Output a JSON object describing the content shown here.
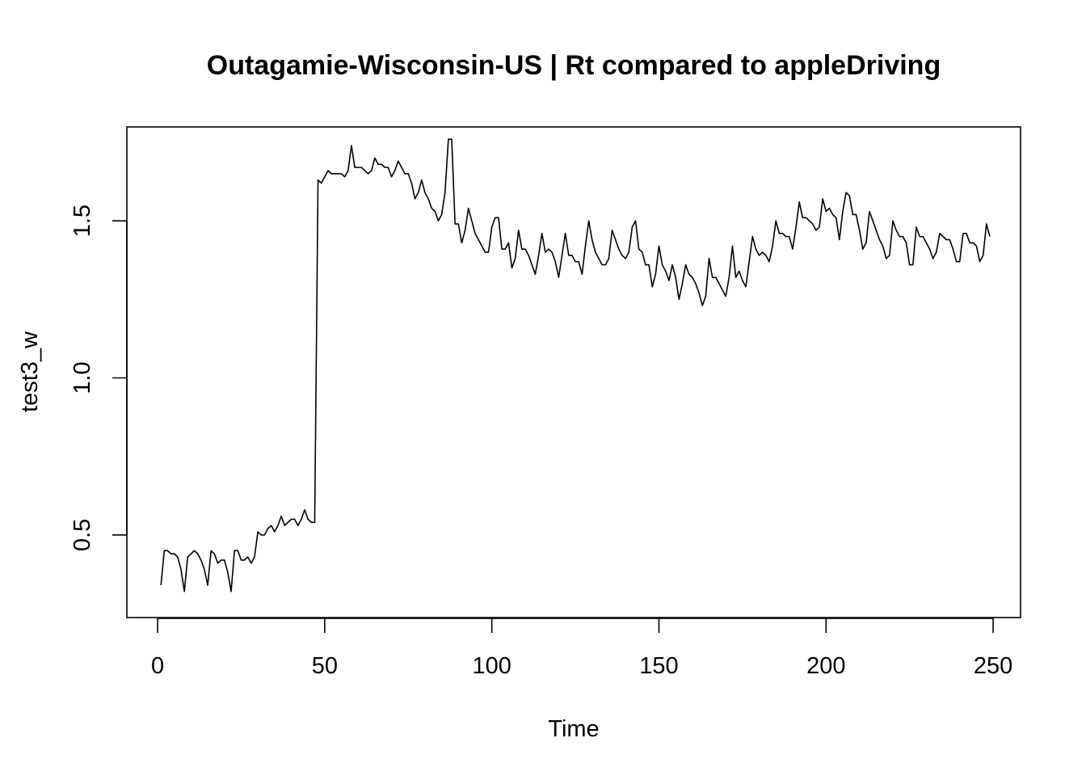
{
  "chart_data": {
    "type": "line",
    "title": "Outagamie-Wisconsin-US | Rt compared to appleDriving",
    "xlabel": "Time",
    "ylabel": "test3_w",
    "xlim": [
      -9.2,
      258.2
    ],
    "ylim": [
      0.237,
      1.799
    ],
    "xticks": [
      0,
      50,
      100,
      150,
      200,
      250
    ],
    "xtick_labels": [
      "0",
      "50",
      "100",
      "150",
      "200",
      "250"
    ],
    "yticks": [
      0.5,
      1.0,
      1.5
    ],
    "ytick_labels": [
      "0.5",
      "1.0",
      "1.5"
    ],
    "grid": false,
    "legend": "none",
    "color": "#000000",
    "series": [
      {
        "x_start": 1,
        "x_step": 1,
        "values": [
          0.34,
          0.45,
          0.45,
          0.44,
          0.44,
          0.43,
          0.39,
          0.32,
          0.43,
          0.44,
          0.45,
          0.44,
          0.42,
          0.39,
          0.34,
          0.45,
          0.44,
          0.41,
          0.42,
          0.42,
          0.38,
          0.32,
          0.45,
          0.45,
          0.42,
          0.42,
          0.43,
          0.41,
          0.43,
          0.51,
          0.5,
          0.5,
          0.52,
          0.53,
          0.51,
          0.53,
          0.56,
          0.53,
          0.54,
          0.55,
          0.55,
          0.53,
          0.55,
          0.58,
          0.55,
          0.54,
          0.54,
          1.63,
          1.62,
          1.64,
          1.66,
          1.65,
          1.65,
          1.65,
          1.65,
          1.64,
          1.66,
          1.74,
          1.67,
          1.67,
          1.67,
          1.66,
          1.65,
          1.66,
          1.7,
          1.68,
          1.68,
          1.67,
          1.67,
          1.64,
          1.66,
          1.69,
          1.67,
          1.65,
          1.65,
          1.62,
          1.57,
          1.59,
          1.63,
          1.59,
          1.57,
          1.54,
          1.53,
          1.5,
          1.52,
          1.59,
          1.76,
          1.76,
          1.49,
          1.49,
          1.43,
          1.47,
          1.54,
          1.5,
          1.46,
          1.44,
          1.42,
          1.4,
          1.4,
          1.48,
          1.51,
          1.51,
          1.41,
          1.41,
          1.43,
          1.35,
          1.38,
          1.47,
          1.41,
          1.41,
          1.39,
          1.36,
          1.33,
          1.39,
          1.46,
          1.4,
          1.41,
          1.4,
          1.37,
          1.32,
          1.39,
          1.46,
          1.39,
          1.39,
          1.37,
          1.37,
          1.33,
          1.42,
          1.5,
          1.44,
          1.4,
          1.38,
          1.36,
          1.36,
          1.38,
          1.47,
          1.44,
          1.41,
          1.39,
          1.38,
          1.4,
          1.48,
          1.5,
          1.41,
          1.4,
          1.36,
          1.36,
          1.29,
          1.33,
          1.42,
          1.36,
          1.34,
          1.31,
          1.36,
          1.32,
          1.25,
          1.3,
          1.36,
          1.33,
          1.32,
          1.3,
          1.27,
          1.23,
          1.26,
          1.38,
          1.32,
          1.32,
          1.3,
          1.28,
          1.26,
          1.32,
          1.42,
          1.32,
          1.34,
          1.31,
          1.29,
          1.37,
          1.45,
          1.41,
          1.39,
          1.4,
          1.39,
          1.37,
          1.42,
          1.5,
          1.46,
          1.46,
          1.45,
          1.45,
          1.41,
          1.48,
          1.56,
          1.51,
          1.51,
          1.5,
          1.49,
          1.47,
          1.48,
          1.57,
          1.53,
          1.54,
          1.52,
          1.51,
          1.44,
          1.53,
          1.59,
          1.58,
          1.52,
          1.52,
          1.47,
          1.41,
          1.43,
          1.53,
          1.5,
          1.47,
          1.44,
          1.42,
          1.38,
          1.39,
          1.5,
          1.47,
          1.45,
          1.45,
          1.43,
          1.36,
          1.36,
          1.48,
          1.45,
          1.45,
          1.43,
          1.41,
          1.38,
          1.4,
          1.46,
          1.45,
          1.44,
          1.44,
          1.41,
          1.37,
          1.37,
          1.46,
          1.46,
          1.43,
          1.43,
          1.42,
          1.37,
          1.39,
          1.49,
          1.45
        ]
      }
    ]
  }
}
